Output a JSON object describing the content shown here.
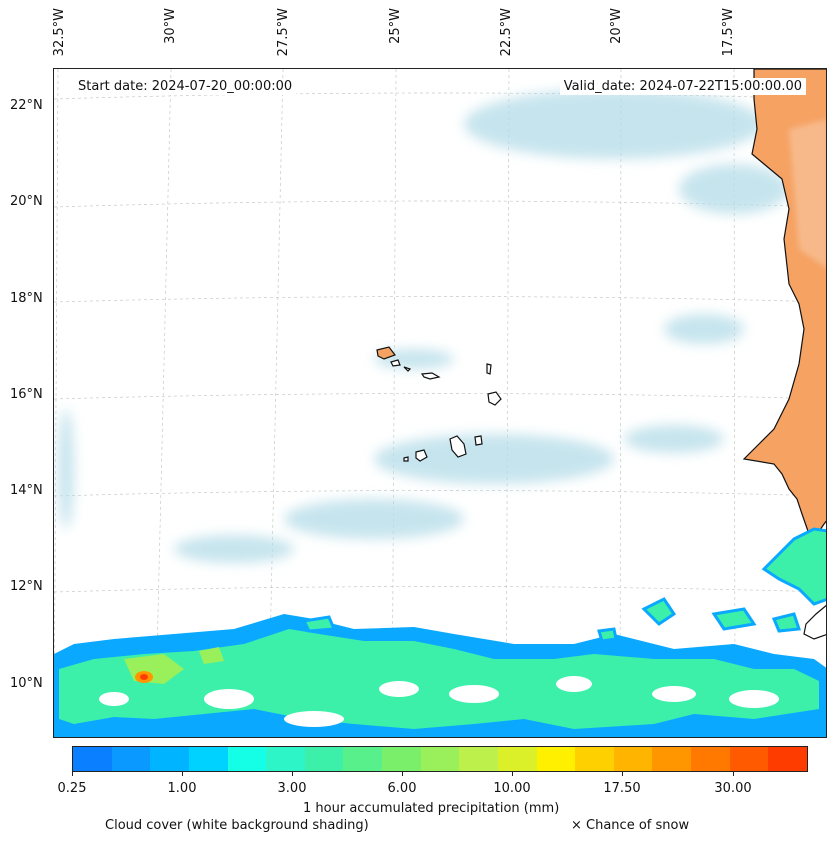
{
  "map": {
    "start_date": "Start date: 2024-07-20_00:00:00",
    "valid_date": "Valid_date: 2024-07-22T15:00:00.00",
    "lon_labels": [
      "32.5°W",
      "30°W",
      "27.5°W",
      "25°W",
      "22.5°W",
      "20°W",
      "17.5°W"
    ],
    "lat_labels": [
      "22°N",
      "20°N",
      "18°N",
      "16°N",
      "14°N",
      "12°N",
      "10°N"
    ]
  },
  "colorbar": {
    "title": "1 hour accumulated precipitation (mm)",
    "tick_labels": [
      "0.25",
      "1.00",
      "3.00",
      "6.00",
      "10.00",
      "17.50",
      "30.00"
    ],
    "colors": [
      "#0a7fff",
      "#0a99ff",
      "#00b4ff",
      "#00d2ff",
      "#14ffe6",
      "#2ef5c8",
      "#3cf0aa",
      "#57f08a",
      "#7af06a",
      "#9af05a",
      "#bdf04a",
      "#dcf02a",
      "#fff000",
      "#ffd000",
      "#ffb400",
      "#ff9600",
      "#ff7800",
      "#ff5a00",
      "#ff3c00"
    ]
  },
  "legend": {
    "cloud_label": "Cloud cover (white background shading)",
    "snow_label": "× Chance of snow"
  },
  "palette": {
    "land": "#f5a263",
    "cloud": "#b4dce8",
    "precip_light": "#3cf0aa",
    "precip_blue": "#0aa8ff",
    "precip_yellow": "#dcf02a",
    "precip_red": "#ff3c00"
  }
}
